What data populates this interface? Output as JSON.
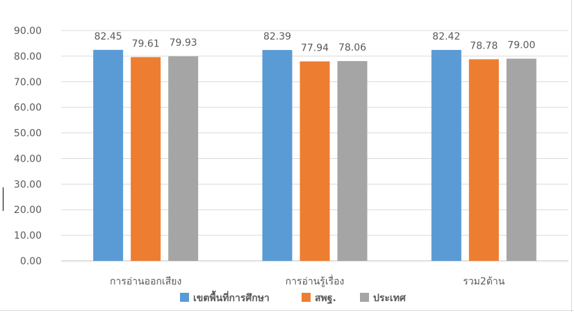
{
  "chart_data": {
    "type": "bar",
    "categories": [
      "การอ่านออกเสียง",
      "การอ่านรู้เรื่อง",
      "รวม2ด้าน"
    ],
    "series": [
      {
        "name": "เขตพื้นที่การศึกษา",
        "values": [
          82.45,
          82.39,
          82.42
        ],
        "labels": [
          "82.45",
          "82.39",
          "82.42"
        ],
        "color": "#5B9BD5"
      },
      {
        "name": "สพฐ.",
        "values": [
          79.61,
          77.94,
          78.78
        ],
        "labels": [
          "79.61",
          "77.94",
          "78.78"
        ],
        "color": "#ED7D31"
      },
      {
        "name": "ประเทศ",
        "values": [
          79.93,
          78.06,
          79.0
        ],
        "labels": [
          "79.93",
          "78.06",
          "79.00"
        ],
        "color": "#A5A5A5"
      }
    ],
    "ylim": [
      0,
      90
    ],
    "yticks": [
      "0.00",
      "10.00",
      "20.00",
      "30.00",
      "40.00",
      "50.00",
      "60.00",
      "70.00",
      "80.00",
      "90.00"
    ],
    "grid": true,
    "legend": "bottom",
    "title": "",
    "xlabel": "",
    "ylabel": ""
  }
}
